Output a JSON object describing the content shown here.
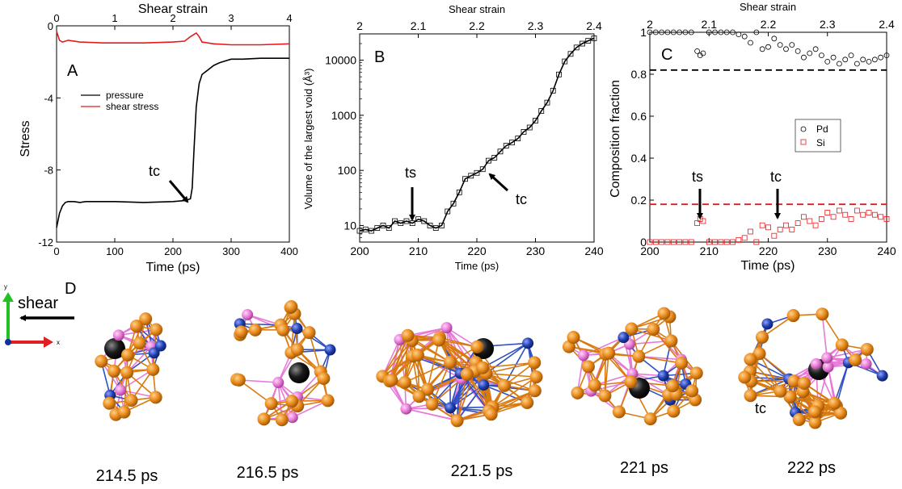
{
  "chart_data": [
    {
      "panel": "A",
      "type": "line",
      "title": "",
      "xlabel": "Time (ps)",
      "ylabel": "Stress",
      "top_xlabel": "Shear strain",
      "xlim": [
        0,
        400
      ],
      "ylim": [
        -12,
        0
      ],
      "top_xlim": [
        0,
        4
      ],
      "x_ticks": [
        0,
        100,
        200,
        300,
        400
      ],
      "y_ticks": [
        0,
        -4,
        -8,
        -12
      ],
      "top_ticks": [
        0,
        1,
        2,
        3,
        4
      ],
      "legend": [
        "pressure",
        "shear stress"
      ],
      "annotation": "tc",
      "annotation_target": [
        232,
        -9.7
      ],
      "series": [
        {
          "name": "pressure",
          "color": "#000000",
          "x": [
            0,
            5,
            10,
            15,
            20,
            30,
            40,
            50,
            70,
            100,
            150,
            200,
            220,
            230,
            233,
            236,
            240,
            245,
            250,
            260,
            270,
            280,
            290,
            300,
            320,
            350,
            380,
            400
          ],
          "y": [
            -11.2,
            -10.4,
            -10.0,
            -9.8,
            -9.75,
            -9.75,
            -9.8,
            -9.75,
            -9.75,
            -9.75,
            -9.8,
            -9.75,
            -9.7,
            -9.6,
            -9.0,
            -7.0,
            -4.5,
            -3.2,
            -2.7,
            -2.45,
            -2.2,
            -2.05,
            -1.95,
            -1.85,
            -1.85,
            -1.8,
            -1.8,
            -1.8
          ]
        },
        {
          "name": "shear stress",
          "color": "#e41a1c",
          "x": [
            0,
            5,
            10,
            20,
            40,
            80,
            150,
            200,
            220,
            230,
            240,
            245,
            250,
            270,
            300,
            350,
            400
          ],
          "y": [
            -0.3,
            -0.8,
            -0.9,
            -0.8,
            -0.9,
            -0.95,
            -0.95,
            -0.9,
            -0.85,
            -0.6,
            -0.4,
            -0.6,
            -0.9,
            -1.0,
            -1.05,
            -1.05,
            -1.0
          ]
        }
      ]
    },
    {
      "panel": "B",
      "type": "line",
      "title": "",
      "xlabel": "Time (ps)",
      "ylabel": "Volume of the largest void (Å³)",
      "top_xlabel": "Shear strain",
      "xlim": [
        200,
        240
      ],
      "ylim": [
        5,
        30000
      ],
      "yscale": "log",
      "top_xlim": [
        2.0,
        2.4
      ],
      "x_ticks": [
        200,
        210,
        220,
        230,
        240
      ],
      "y_ticks": [
        10,
        100,
        1000,
        10000
      ],
      "top_ticks": [
        2.0,
        2.1,
        2.2,
        2.3,
        2.4
      ],
      "annotations": [
        {
          "label": "ts",
          "x": 208.5,
          "y": 11
        },
        {
          "label": "tc",
          "x": 221.5,
          "y": 100
        }
      ],
      "series": [
        {
          "name": "void volume",
          "color": "#000000",
          "marker": "square",
          "x": [
            200,
            201,
            202,
            203,
            204,
            205,
            206,
            207,
            208,
            209,
            210,
            211,
            212,
            213,
            214,
            215,
            216,
            217,
            218,
            219,
            220,
            221,
            222,
            223,
            224,
            225,
            226,
            227,
            228,
            229,
            230,
            231,
            232,
            233,
            234,
            235,
            236,
            237,
            238,
            239,
            240
          ],
          "y": [
            8,
            8.5,
            8,
            9,
            10,
            9,
            12,
            11,
            12,
            11,
            13,
            12,
            10,
            9,
            10,
            18,
            25,
            40,
            70,
            80,
            90,
            105,
            150,
            170,
            220,
            280,
            320,
            380,
            500,
            600,
            800,
            1200,
            1700,
            2800,
            5500,
            9500,
            13000,
            17000,
            20000,
            22500,
            25000
          ]
        }
      ]
    },
    {
      "panel": "C",
      "type": "scatter",
      "title": "",
      "xlabel": "Time (ps)",
      "ylabel": "Composition fraction",
      "top_xlabel": "Shear strain",
      "xlim": [
        200,
        240
      ],
      "ylim": [
        0,
        1
      ],
      "top_xlim": [
        2.0,
        2.4
      ],
      "x_ticks": [
        200,
        210,
        220,
        230,
        240
      ],
      "y_ticks": [
        0,
        0.2,
        0.4,
        0.6,
        0.8,
        1
      ],
      "top_ticks": [
        2.0,
        2.1,
        2.2,
        2.3,
        2.4
      ],
      "reference_lines": [
        {
          "y": 0.82,
          "color": "#000000"
        },
        {
          "y": 0.18,
          "color": "#e41a1c"
        }
      ],
      "legend": [
        "Pd",
        "Si"
      ],
      "annotations": [
        {
          "label": "ts",
          "x": 208.5,
          "y": 0.09
        },
        {
          "label": "tc",
          "x": 221.5,
          "y": 0.06
        }
      ],
      "series": [
        {
          "name": "Pd",
          "color": "#000000",
          "marker": "circle",
          "x": [
            200,
            201,
            202,
            203,
            204,
            205,
            206,
            207,
            208,
            208.5,
            209,
            210,
            211,
            212,
            213,
            214,
            215,
            216,
            217,
            218,
            219,
            220,
            221,
            222,
            223,
            224,
            225,
            226,
            227,
            228,
            229,
            230,
            231,
            232,
            233,
            234,
            235,
            236,
            237,
            238,
            239,
            240
          ],
          "y": [
            1,
            1,
            1,
            1,
            1,
            1,
            1,
            1,
            0.91,
            0.89,
            0.9,
            1,
            1,
            1,
            1,
            1,
            0.99,
            0.98,
            0.95,
            1,
            0.92,
            0.93,
            0.97,
            0.94,
            0.92,
            0.94,
            0.91,
            0.88,
            0.9,
            0.92,
            0.89,
            0.86,
            0.88,
            0.85,
            0.87,
            0.89,
            0.85,
            0.87,
            0.86,
            0.87,
            0.88,
            0.89
          ]
        },
        {
          "name": "Si",
          "color": "#e41a1c",
          "marker": "square",
          "x": [
            200,
            201,
            202,
            203,
            204,
            205,
            206,
            207,
            208,
            208.5,
            209,
            210,
            211,
            212,
            213,
            214,
            215,
            216,
            217,
            218,
            219,
            220,
            221,
            222,
            223,
            224,
            225,
            226,
            227,
            228,
            229,
            230,
            231,
            232,
            233,
            234,
            235,
            236,
            237,
            238,
            239,
            240
          ],
          "y": [
            0,
            0,
            0,
            0,
            0,
            0,
            0,
            0,
            0.09,
            0.11,
            0.1,
            0,
            0,
            0,
            0,
            0,
            0.01,
            0.02,
            0.05,
            0,
            0.08,
            0.07,
            0.03,
            0.06,
            0.08,
            0.06,
            0.09,
            0.12,
            0.1,
            0.08,
            0.11,
            0.14,
            0.12,
            0.15,
            0.13,
            0.11,
            0.15,
            0.13,
            0.14,
            0.13,
            0.12,
            0.11
          ]
        }
      ]
    }
  ],
  "panel_labels": {
    "a": "A",
    "b": "B",
    "c": "C",
    "d": "D"
  },
  "panel_d": {
    "shear_label": "shear",
    "axis_labels": {
      "x": "x",
      "y": "y"
    },
    "annotation_tc": "tc",
    "snapshots": [
      {
        "time": "214.5 ps"
      },
      {
        "time": "216.5 ps"
      },
      {
        "time": "221.5 ps"
      },
      {
        "time": "221 ps"
      },
      {
        "time": "222 ps"
      }
    ]
  },
  "colors": {
    "atom_pd": "#e8891a",
    "atom_si": "#e879d8",
    "atom_cu": "#2040b0",
    "void": "#1a1a1a",
    "bond": "#d97a10"
  }
}
